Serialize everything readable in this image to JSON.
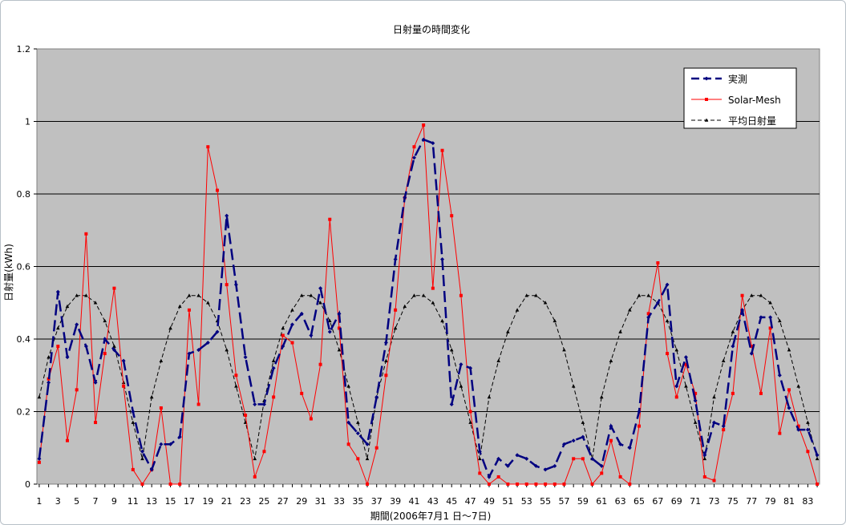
{
  "chart_data": {
    "type": "line",
    "title": "日射量の時間変化",
    "xlabel": "期間(2006年7月1 日～7日)",
    "ylabel": "日射量(kWh)",
    "ylim": [
      0,
      1.2
    ],
    "yticks": [
      "0",
      "0.2",
      "0.4",
      "0.6",
      "0.8",
      "1",
      "1.2"
    ],
    "x": [
      1,
      2,
      3,
      4,
      5,
      6,
      7,
      8,
      9,
      10,
      11,
      12,
      13,
      14,
      15,
      16,
      17,
      18,
      19,
      20,
      21,
      22,
      23,
      24,
      25,
      26,
      27,
      28,
      29,
      30,
      31,
      32,
      33,
      34,
      35,
      36,
      37,
      38,
      39,
      40,
      41,
      42,
      43,
      44,
      45,
      46,
      47,
      48,
      49,
      50,
      51,
      52,
      53,
      54,
      55,
      56,
      57,
      58,
      59,
      60,
      61,
      62,
      63,
      64,
      65,
      66,
      67,
      68,
      69,
      70,
      71,
      72,
      73,
      74,
      75,
      76,
      77,
      78,
      79,
      80,
      81,
      82,
      83,
      84
    ],
    "xtick_labels": [
      "1",
      "3",
      "5",
      "7",
      "9",
      "11",
      "13",
      "15",
      "17",
      "19",
      "21",
      "23",
      "25",
      "27",
      "29",
      "31",
      "33",
      "35",
      "37",
      "39",
      "41",
      "43",
      "45",
      "47",
      "49",
      "51",
      "53",
      "55",
      "57",
      "59",
      "61",
      "63",
      "65",
      "67",
      "69",
      "71",
      "73",
      "75",
      "77",
      "79",
      "81",
      "83"
    ],
    "grid": true,
    "legend_position": "top-right",
    "series": [
      {
        "name": "実測",
        "color": "#000080",
        "style": "dash",
        "marker": "diamond",
        "values": [
          0.07,
          0.28,
          0.53,
          0.35,
          0.44,
          0.38,
          0.28,
          0.4,
          0.37,
          0.34,
          0.2,
          0.09,
          0.04,
          0.11,
          0.11,
          0.13,
          0.36,
          0.37,
          0.39,
          0.42,
          0.74,
          0.55,
          0.35,
          0.22,
          0.22,
          0.32,
          0.38,
          0.44,
          0.47,
          0.41,
          0.54,
          0.42,
          0.47,
          0.17,
          0.14,
          0.11,
          0.24,
          0.39,
          0.62,
          0.79,
          0.9,
          0.95,
          0.94,
          0.62,
          0.22,
          0.33,
          0.32,
          0.09,
          0.02,
          0.07,
          0.05,
          0.08,
          0.07,
          0.05,
          0.04,
          0.05,
          0.11,
          0.12,
          0.13,
          0.07,
          0.05,
          0.16,
          0.11,
          0.1,
          0.2,
          0.46,
          0.5,
          0.55,
          0.27,
          0.35,
          0.23,
          0.08,
          0.17,
          0.16,
          0.38,
          0.48,
          0.36,
          0.46,
          0.46,
          0.3,
          0.21,
          0.15,
          0.15,
          0.08
        ]
      },
      {
        "name": "Solar-Mesh",
        "color": "#ff0000",
        "style": "solid",
        "marker": "square",
        "values": [
          0.06,
          0.29,
          0.38,
          0.12,
          0.26,
          0.69,
          0.17,
          0.36,
          0.54,
          0.27,
          0.04,
          0.0,
          0.04,
          0.21,
          0.0,
          0.0,
          0.48,
          0.22,
          0.93,
          0.81,
          0.55,
          0.3,
          0.19,
          0.02,
          0.09,
          0.24,
          0.41,
          0.39,
          0.25,
          0.18,
          0.33,
          0.73,
          0.43,
          0.11,
          0.07,
          0.0,
          0.1,
          0.3,
          0.48,
          0.79,
          0.93,
          0.99,
          0.54,
          0.92,
          0.74,
          0.52,
          0.2,
          0.03,
          0.0,
          0.02,
          0.0,
          0.0,
          0.0,
          0.0,
          0.0,
          0.0,
          0.0,
          0.07,
          0.07,
          0.0,
          0.03,
          0.12,
          0.02,
          0.0,
          0.16,
          0.47,
          0.61,
          0.36,
          0.24,
          0.33,
          0.25,
          0.02,
          0.01,
          0.15,
          0.25,
          0.52,
          0.38,
          0.25,
          0.43,
          0.14,
          0.26,
          0.16,
          0.09,
          0.0
        ]
      },
      {
        "name": "平均日射量",
        "color": "#000000",
        "style": "dash-fine",
        "marker": "triangle",
        "values": [
          0.24,
          0.35,
          0.43,
          0.49,
          0.52,
          0.52,
          0.5,
          0.45,
          0.38,
          0.28,
          0.17,
          0.07,
          0.24,
          0.34,
          0.43,
          0.49,
          0.52,
          0.52,
          0.5,
          0.45,
          0.37,
          0.27,
          0.17,
          0.07,
          0.23,
          0.34,
          0.43,
          0.48,
          0.52,
          0.52,
          0.5,
          0.45,
          0.37,
          0.27,
          0.17,
          0.07,
          0.24,
          0.34,
          0.43,
          0.49,
          0.52,
          0.52,
          0.5,
          0.45,
          0.37,
          0.27,
          0.17,
          0.07,
          0.24,
          0.34,
          0.42,
          0.48,
          0.52,
          0.52,
          0.5,
          0.45,
          0.37,
          0.27,
          0.17,
          0.07,
          0.24,
          0.34,
          0.42,
          0.48,
          0.52,
          0.52,
          0.5,
          0.45,
          0.37,
          0.27,
          0.17,
          0.07,
          0.24,
          0.34,
          0.42,
          0.48,
          0.52,
          0.52,
          0.5,
          0.45,
          0.37,
          0.27,
          0.17,
          0.07
        ]
      }
    ]
  }
}
